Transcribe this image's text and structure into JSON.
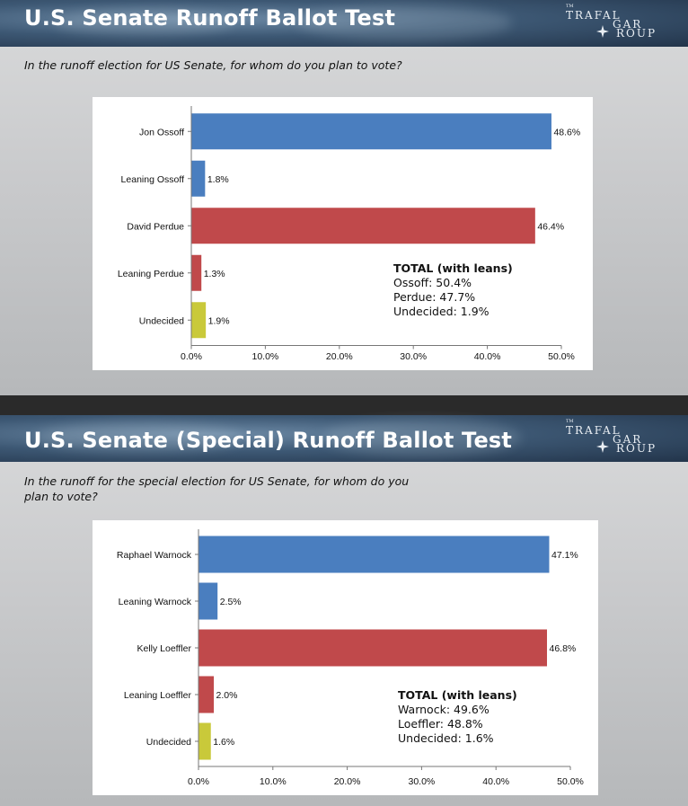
{
  "logo": {
    "tm": "TM",
    "line1": "TRAFAL",
    "line2": "GAR",
    "line3": "ROUP"
  },
  "colors": {
    "blue": "#4a7ebf",
    "red": "#c0494b",
    "yellow": "#c9c93a"
  },
  "slides": [
    {
      "title": "U.S. Senate Runoff Ballot Test",
      "question": "In the runoff election for US Senate, for whom do you plan to vote?",
      "totals": {
        "heading": "TOTAL (with leans)",
        "lines": [
          "Ossoff: 50.4%",
          "Perdue: 47.7%",
          "Undecided: 1.9%"
        ]
      }
    },
    {
      "title": "U.S. Senate (Special) Runoff Ballot Test",
      "question_lines": [
        "In the runoff for the special election for US Senate, for whom do you",
        "plan to vote?"
      ],
      "totals": {
        "heading": "TOTAL (with leans)",
        "lines": [
          "Warnock: 49.6%",
          "Loeffler: 48.8%",
          "Undecided: 1.6%"
        ]
      }
    }
  ],
  "chart_data": [
    {
      "type": "bar",
      "orientation": "horizontal",
      "categories": [
        "Jon Ossoff",
        "Leaning Ossoff",
        "David Perdue",
        "Leaning Perdue",
        "Undecided"
      ],
      "values": [
        48.6,
        1.8,
        46.4,
        1.3,
        1.9
      ],
      "value_labels": [
        "48.6%",
        "1.8%",
        "46.4%",
        "1.3%",
        "1.9%"
      ],
      "bar_colors": [
        "blue",
        "blue",
        "red",
        "red",
        "yellow"
      ],
      "xlim": [
        0,
        50
      ],
      "ticks": [
        0,
        10,
        20,
        30,
        40,
        50
      ],
      "tick_labels": [
        "0.0%",
        "10.0%",
        "20.0%",
        "30.0%",
        "40.0%",
        "50.0%"
      ]
    },
    {
      "type": "bar",
      "orientation": "horizontal",
      "categories": [
        "Raphael Warnock",
        "Leaning Warnock",
        "Kelly Loeffler",
        "Leaning Loeffler",
        "Undecided"
      ],
      "values": [
        47.1,
        2.5,
        46.8,
        2.0,
        1.6
      ],
      "value_labels": [
        "47.1%",
        "2.5%",
        "46.8%",
        "2.0%",
        "1.6%"
      ],
      "bar_colors": [
        "blue",
        "blue",
        "red",
        "red",
        "yellow"
      ],
      "xlim": [
        0,
        50
      ],
      "ticks": [
        0,
        10,
        20,
        30,
        40,
        50
      ],
      "tick_labels": [
        "0.0%",
        "10.0%",
        "20.0%",
        "30.0%",
        "40.0%",
        "50.0%"
      ]
    }
  ]
}
